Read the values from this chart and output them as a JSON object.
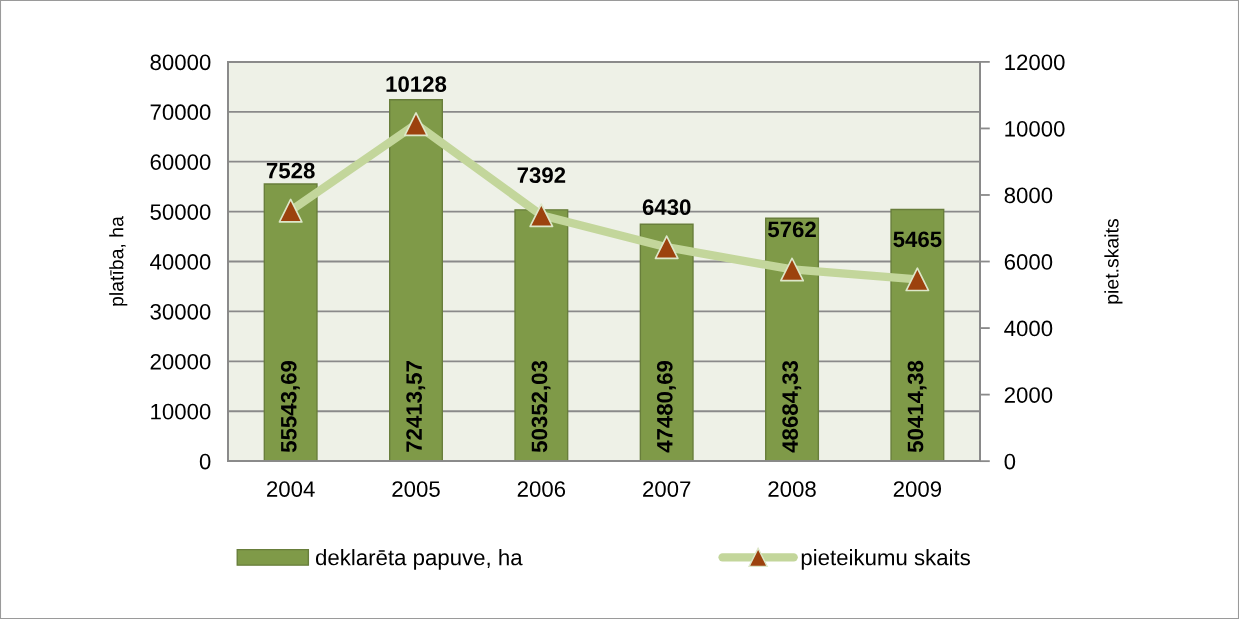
{
  "chart_data": {
    "type": "bar",
    "categories": [
      "2004",
      "2005",
      "2006",
      "2007",
      "2008",
      "2009"
    ],
    "ylabel": "platība, ha",
    "y2label": "piet.skaits",
    "ylim": [
      0,
      80000
    ],
    "yticks": [
      0,
      10000,
      20000,
      30000,
      40000,
      50000,
      60000,
      70000,
      80000
    ],
    "y2lim": [
      0,
      12000
    ],
    "y2ticks": [
      0,
      2000,
      4000,
      6000,
      8000,
      10000,
      12000
    ],
    "grid": "y",
    "legend": "bottom",
    "series": [
      {
        "name": "deklarēta papuve, ha",
        "color": "#7f9a48",
        "values": [
          55543.69,
          72413.57,
          50352.03,
          47480.69,
          48684.33,
          50414.38
        ],
        "value_labels": [
          "55543,69",
          "72413,57",
          "50352,03",
          "47480,69",
          "48684,33",
          "50414,38"
        ]
      },
      {
        "name": "pieteikumu skaits",
        "type": "line",
        "axis": "y2",
        "marker": "triangle",
        "color": "#c3d69b",
        "colors": [
          "#9c420e",
          "#9c420e",
          "#9c420e",
          "#9c420e",
          "#9c420e",
          "#9c420e"
        ],
        "values": [
          7528,
          10128,
          7392,
          6430,
          5762,
          5465
        ],
        "value_labels": [
          "7528",
          "10128",
          "7392",
          "6430",
          "5762",
          "5465"
        ]
      }
    ]
  }
}
